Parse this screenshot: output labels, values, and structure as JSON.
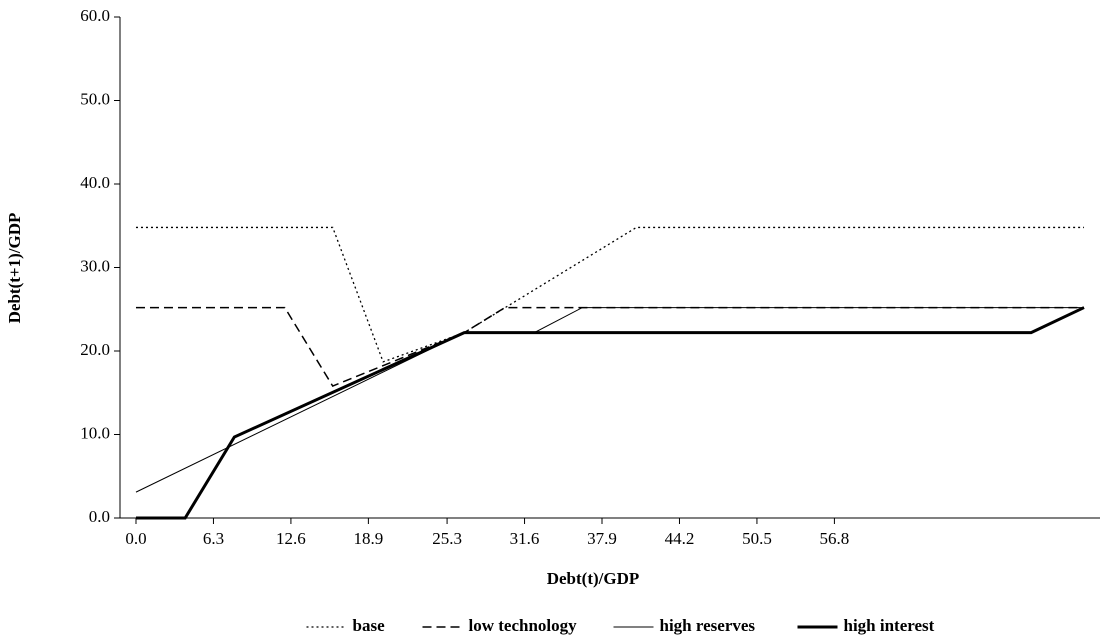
{
  "chart_data": {
    "type": "line",
    "xlabel": "Debt(t)/GDP",
    "ylabel": "Debt(t+1)/GDP",
    "xlim": [
      -1.3,
      78.4
    ],
    "ylim": [
      0,
      60
    ],
    "xticks": [
      {
        "value": 0,
        "label": "0.0"
      },
      6.3,
      12.6,
      18.9,
      25.3,
      31.6,
      37.9,
      44.2,
      50.5,
      56.8
    ],
    "yticks": [
      {
        "value": 0,
        "label": "0.0"
      },
      {
        "value": 10,
        "label": "10.0"
      },
      {
        "value": 20,
        "label": "20.0"
      },
      {
        "value": 30,
        "label": "30.0"
      },
      {
        "value": 40,
        "label": "40.0"
      },
      {
        "value": 50,
        "label": "50.0"
      },
      {
        "value": 60,
        "label": "60.0"
      }
    ],
    "legend": "bottom",
    "series": [
      {
        "name": "base",
        "color": "#000000",
        "dash": "dotted",
        "width": 1.3,
        "x": [
          0,
          16.0,
          20.1,
          26.7,
          40.7,
          77.1
        ],
        "values": [
          34.8,
          34.8,
          18.7,
          22.2,
          34.8,
          34.8
        ]
      },
      {
        "name": "low technology",
        "color": "#000000",
        "dash": "dashed",
        "width": 1.5,
        "x": [
          0,
          12.1,
          16.0,
          26.7,
          30.0,
          77.1
        ],
        "values": [
          25.2,
          25.2,
          15.8,
          22.2,
          25.2,
          25.2
        ]
      },
      {
        "name": "high reserves",
        "color": "#000000",
        "dash": "solid",
        "width": 1,
        "x": [
          0,
          26.7,
          32.4,
          36.3,
          77.1
        ],
        "values": [
          3.1,
          22.2,
          22.2,
          25.2,
          25.2
        ]
      },
      {
        "name": "high interest",
        "color": "#000000",
        "dash": "solid",
        "width": 3,
        "x": [
          0,
          4.0,
          8.0,
          26.7,
          72.8,
          77.1
        ],
        "values": [
          0,
          0,
          9.7,
          22.2,
          22.2,
          25.2
        ]
      }
    ]
  }
}
